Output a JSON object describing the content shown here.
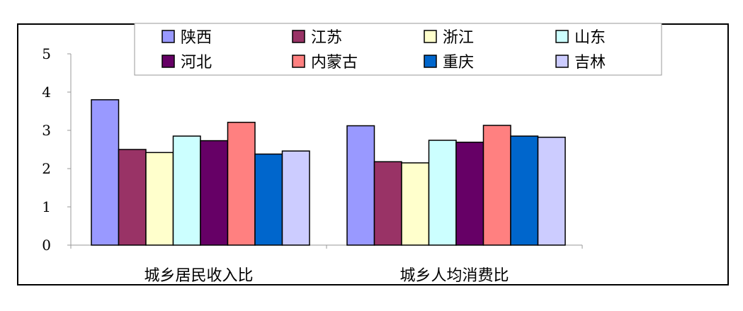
{
  "chart_data": {
    "type": "bar",
    "categories": [
      "城乡居民收入比",
      "城乡人均消费比"
    ],
    "series": [
      {
        "name": "陕西",
        "color": "#9999ff",
        "values": [
          3.8,
          3.12
        ]
      },
      {
        "name": "江苏",
        "color": "#993366",
        "values": [
          2.5,
          2.18
        ]
      },
      {
        "name": "浙江",
        "color": "#ffffcc",
        "values": [
          2.42,
          2.15
        ]
      },
      {
        "name": "山东",
        "color": "#ccffff",
        "values": [
          2.85,
          2.74
        ]
      },
      {
        "name": "河北",
        "color": "#660066",
        "values": [
          2.73,
          2.69
        ]
      },
      {
        "name": "内蒙古",
        "color": "#ff8080",
        "values": [
          3.21,
          3.13
        ]
      },
      {
        "name": "重庆",
        "color": "#0066cc",
        "values": [
          2.38,
          2.85
        ]
      },
      {
        "name": "吉林",
        "color": "#ccccff",
        "values": [
          2.46,
          2.82
        ]
      }
    ],
    "yticks": [
      "0",
      "1",
      "2",
      "3",
      "4",
      "5"
    ],
    "ylim": [
      0,
      5
    ],
    "legend_position": "top",
    "grid": false
  }
}
